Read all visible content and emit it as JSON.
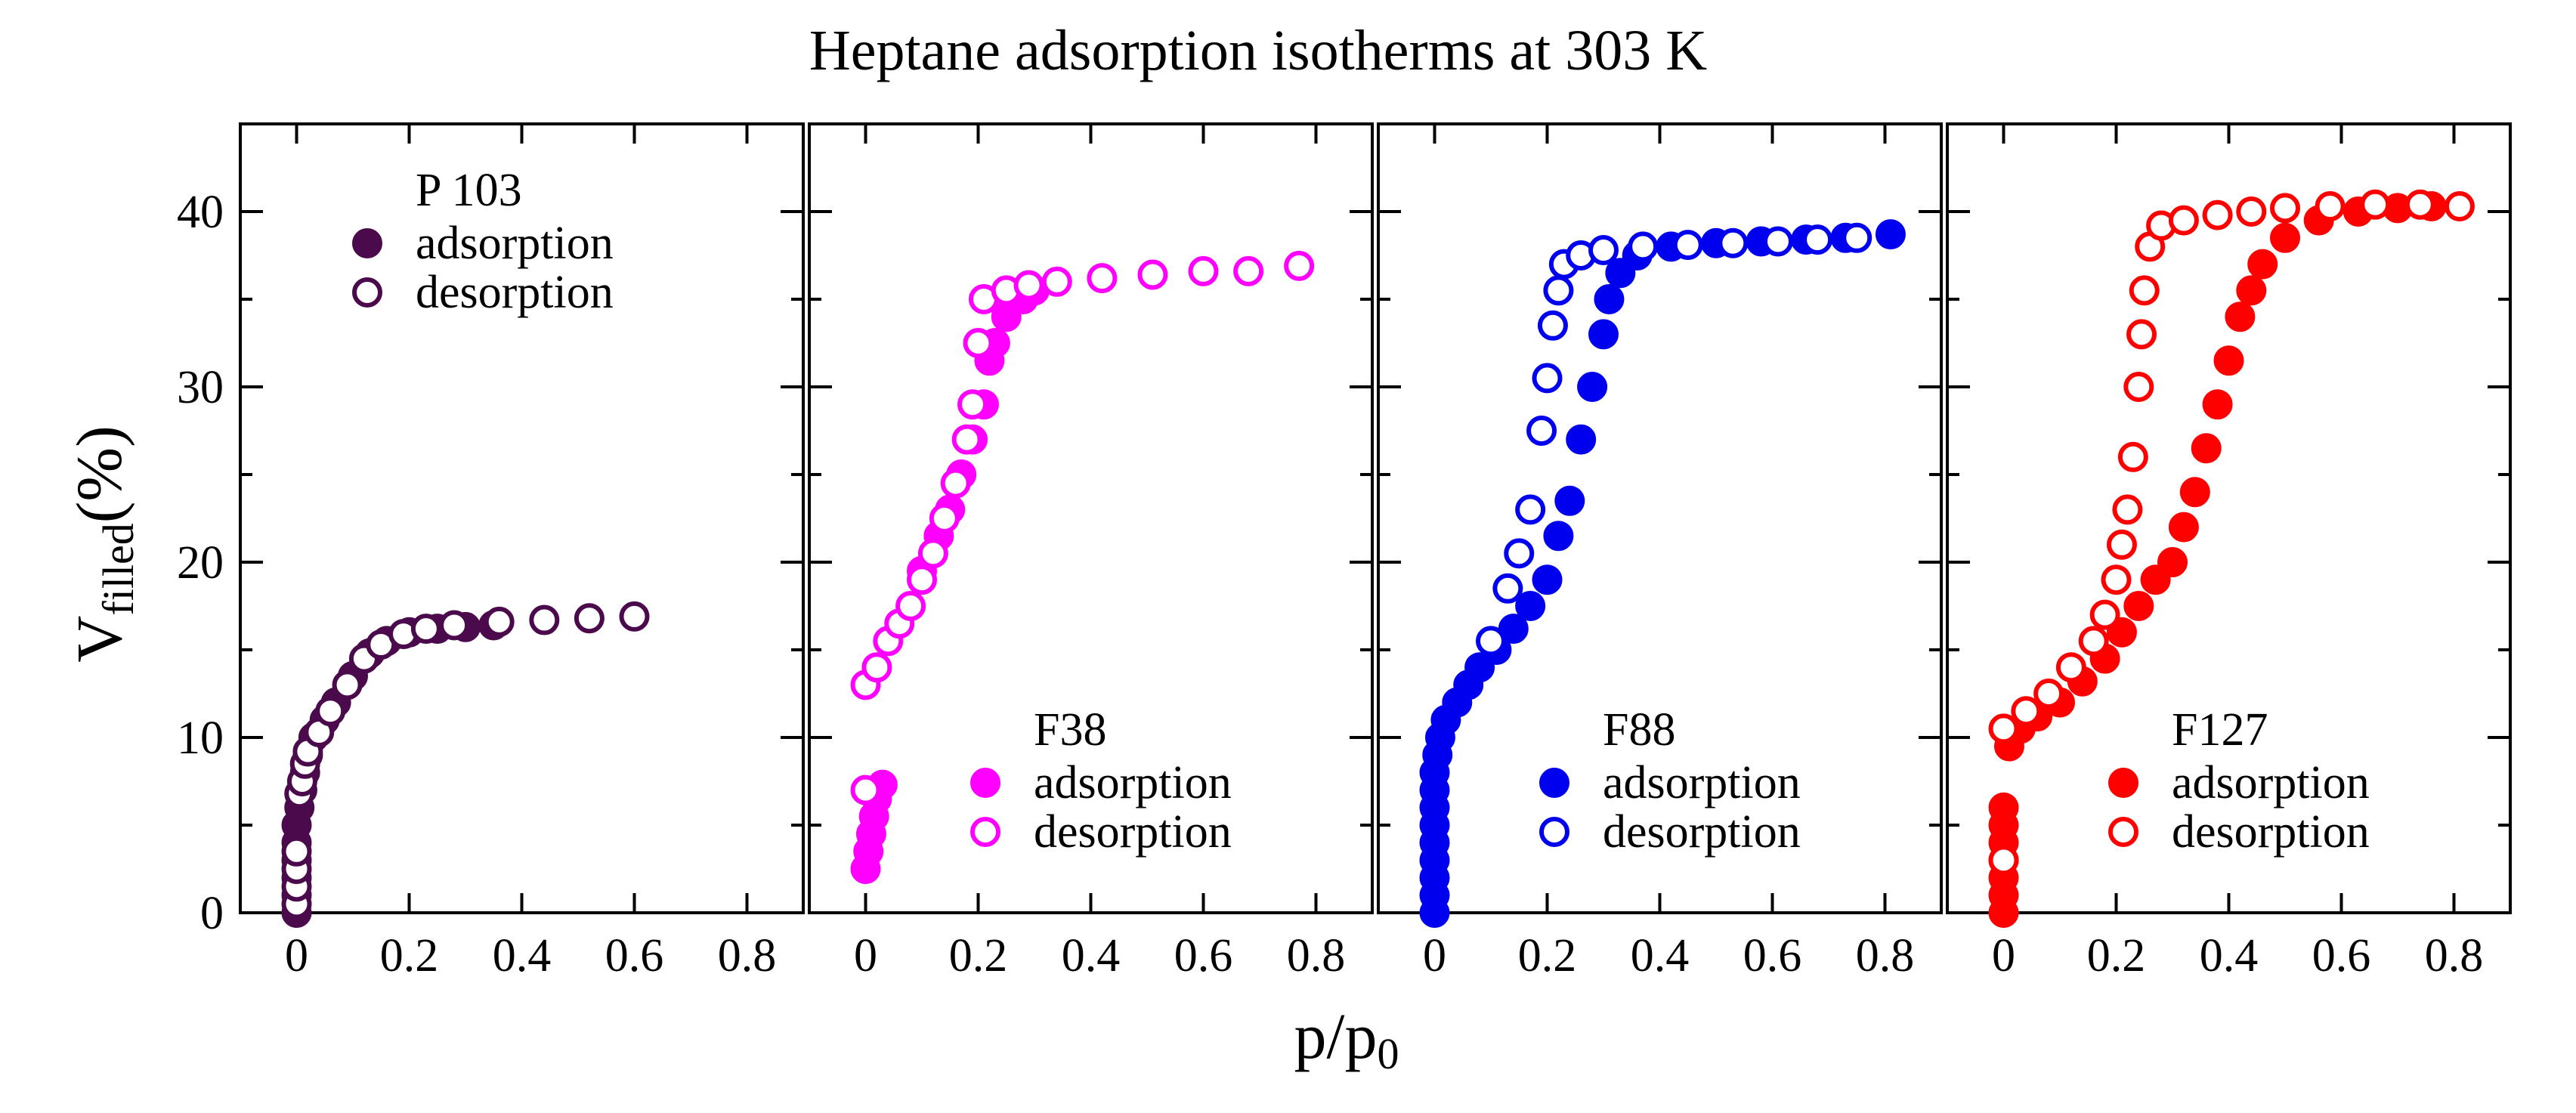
{
  "chart_data": {
    "type": "scatter",
    "title": "Heptane adsorption isotherms at 303 K",
    "xlabel_main": "p/p",
    "xlabel_sub": "0",
    "ylabel_main": "V",
    "ylabel_sub": "filled",
    "ylabel_suffix": "(%)",
    "xlim": [
      -0.1,
      0.9
    ],
    "ylim": [
      0,
      45
    ],
    "xticks": [
      0,
      0.2,
      0.4,
      0.6,
      0.8
    ],
    "xtick_labels": [
      "0",
      "0.2",
      "0.4",
      "0.6",
      "0.8"
    ],
    "yticks": [
      0,
      10,
      20,
      30,
      40
    ],
    "ytick_labels": [
      "0",
      "10",
      "20",
      "30",
      "40"
    ],
    "panels": [
      {
        "name": "P103",
        "label": "P 103",
        "color": "#4B0A4B",
        "legend_position": "top-left",
        "legend_adsorption": "adsorption",
        "legend_desorption": "desorption",
        "adsorption": [
          [
            0.0,
            0
          ],
          [
            0.0,
            1
          ],
          [
            0.0,
            2
          ],
          [
            0.0,
            3
          ],
          [
            0.0,
            4
          ],
          [
            0.0,
            5
          ],
          [
            0.005,
            6
          ],
          [
            0.01,
            7
          ],
          [
            0.015,
            8
          ],
          [
            0.02,
            9
          ],
          [
            0.03,
            10
          ],
          [
            0.05,
            11
          ],
          [
            0.07,
            12
          ],
          [
            0.1,
            13.5
          ],
          [
            0.13,
            14.8
          ],
          [
            0.16,
            15.5
          ],
          [
            0.2,
            16.0
          ],
          [
            0.25,
            16.2
          ],
          [
            0.3,
            16.3
          ],
          [
            0.35,
            16.4
          ]
        ],
        "desorption": [
          [
            0.0,
            0.5
          ],
          [
            0.0,
            1.5
          ],
          [
            0.0,
            2.5
          ],
          [
            0.0,
            3.5
          ],
          [
            0.005,
            6.8
          ],
          [
            0.01,
            7.5
          ],
          [
            0.015,
            8.5
          ],
          [
            0.02,
            9.2
          ],
          [
            0.04,
            10.3
          ],
          [
            0.06,
            11.5
          ],
          [
            0.09,
            13.0
          ],
          [
            0.12,
            14.5
          ],
          [
            0.15,
            15.3
          ],
          [
            0.19,
            15.9
          ],
          [
            0.23,
            16.2
          ],
          [
            0.28,
            16.4
          ],
          [
            0.36,
            16.6
          ],
          [
            0.44,
            16.7
          ],
          [
            0.52,
            16.8
          ],
          [
            0.6,
            16.9
          ]
        ]
      },
      {
        "name": "F38",
        "label": "F38",
        "color": "#FF00FF",
        "legend_position": "bottom-right",
        "legend_adsorption": "adsorption",
        "legend_desorption": "desorption",
        "adsorption": [
          [
            0.0,
            2.5
          ],
          [
            0.005,
            3.5
          ],
          [
            0.01,
            4.5
          ],
          [
            0.015,
            5.5
          ],
          [
            0.02,
            6.5
          ],
          [
            0.03,
            7.3
          ],
          [
            0.1,
            19.5
          ],
          [
            0.13,
            21.5
          ],
          [
            0.15,
            23.0
          ],
          [
            0.17,
            25.0
          ],
          [
            0.19,
            27.0
          ],
          [
            0.21,
            29.0
          ],
          [
            0.22,
            31.5
          ],
          [
            0.23,
            32.5
          ],
          [
            0.25,
            34.0
          ],
          [
            0.28,
            35.0
          ],
          [
            0.3,
            35.5
          ]
        ],
        "desorption": [
          [
            0.0,
            7.0
          ],
          [
            0.0,
            13.0
          ],
          [
            0.02,
            14.0
          ],
          [
            0.04,
            15.5
          ],
          [
            0.06,
            16.5
          ],
          [
            0.08,
            17.5
          ],
          [
            0.1,
            19.0
          ],
          [
            0.12,
            20.5
          ],
          [
            0.14,
            22.5
          ],
          [
            0.16,
            24.5
          ],
          [
            0.18,
            27.0
          ],
          [
            0.19,
            29.0
          ],
          [
            0.2,
            32.5
          ],
          [
            0.21,
            35.0
          ],
          [
            0.25,
            35.5
          ],
          [
            0.29,
            35.8
          ],
          [
            0.34,
            36.0
          ],
          [
            0.42,
            36.2
          ],
          [
            0.51,
            36.4
          ],
          [
            0.6,
            36.6
          ],
          [
            0.68,
            36.6
          ],
          [
            0.77,
            36.9
          ]
        ]
      },
      {
        "name": "F88",
        "label": "F88",
        "color": "#0000EE",
        "legend_position": "bottom-right",
        "legend_adsorption": "adsorption",
        "legend_desorption": "desorption",
        "adsorption": [
          [
            0.0,
            0
          ],
          [
            0.0,
            1
          ],
          [
            0.0,
            2
          ],
          [
            0.0,
            3
          ],
          [
            0.0,
            4
          ],
          [
            0.0,
            5
          ],
          [
            0.0,
            6
          ],
          [
            0.0,
            7
          ],
          [
            0.0,
            8
          ],
          [
            0.005,
            9
          ],
          [
            0.01,
            10
          ],
          [
            0.02,
            11
          ],
          [
            0.04,
            12
          ],
          [
            0.06,
            13
          ],
          [
            0.08,
            14
          ],
          [
            0.11,
            15
          ],
          [
            0.14,
            16.2
          ],
          [
            0.17,
            17.5
          ],
          [
            0.2,
            19.0
          ],
          [
            0.22,
            21.5
          ],
          [
            0.24,
            23.5
          ],
          [
            0.26,
            27.0
          ],
          [
            0.28,
            30.0
          ],
          [
            0.3,
            33.0
          ],
          [
            0.31,
            35.0
          ],
          [
            0.33,
            36.5
          ],
          [
            0.36,
            37.5
          ],
          [
            0.42,
            38.0
          ],
          [
            0.5,
            38.2
          ],
          [
            0.58,
            38.3
          ],
          [
            0.66,
            38.4
          ],
          [
            0.73,
            38.5
          ],
          [
            0.81,
            38.7
          ]
        ],
        "desorption": [
          [
            0.1,
            15.5
          ],
          [
            0.13,
            18.5
          ],
          [
            0.15,
            20.5
          ],
          [
            0.17,
            23.0
          ],
          [
            0.19,
            27.5
          ],
          [
            0.2,
            30.5
          ],
          [
            0.21,
            33.5
          ],
          [
            0.22,
            35.5
          ],
          [
            0.23,
            37.0
          ],
          [
            0.26,
            37.5
          ],
          [
            0.3,
            37.8
          ],
          [
            0.37,
            38.0
          ],
          [
            0.45,
            38.1
          ],
          [
            0.53,
            38.2
          ],
          [
            0.61,
            38.3
          ],
          [
            0.68,
            38.4
          ],
          [
            0.75,
            38.5
          ]
        ]
      },
      {
        "name": "F127",
        "label": "F127",
        "color": "#FF0000",
        "legend_position": "bottom-right",
        "legend_adsorption": "adsorption",
        "legend_desorption": "desorption",
        "adsorption": [
          [
            0.0,
            0
          ],
          [
            0.0,
            1
          ],
          [
            0.0,
            2
          ],
          [
            0.0,
            3
          ],
          [
            0.0,
            4
          ],
          [
            0.0,
            5
          ],
          [
            0.0,
            6
          ],
          [
            0.01,
            9.5
          ],
          [
            0.03,
            10.5
          ],
          [
            0.06,
            11.2
          ],
          [
            0.1,
            12.0
          ],
          [
            0.14,
            13.2
          ],
          [
            0.18,
            14.5
          ],
          [
            0.21,
            16.0
          ],
          [
            0.24,
            17.5
          ],
          [
            0.27,
            19.0
          ],
          [
            0.3,
            20.0
          ],
          [
            0.32,
            22.0
          ],
          [
            0.34,
            24.0
          ],
          [
            0.36,
            26.5
          ],
          [
            0.38,
            29.0
          ],
          [
            0.4,
            31.5
          ],
          [
            0.42,
            34.0
          ],
          [
            0.44,
            35.5
          ],
          [
            0.46,
            37.0
          ],
          [
            0.5,
            38.5
          ],
          [
            0.56,
            39.5
          ],
          [
            0.63,
            40.0
          ],
          [
            0.7,
            40.2
          ],
          [
            0.76,
            40.3
          ]
        ],
        "desorption": [
          [
            0.0,
            3.0
          ],
          [
            0.0,
            10.5
          ],
          [
            0.04,
            11.5
          ],
          [
            0.08,
            12.5
          ],
          [
            0.12,
            14.0
          ],
          [
            0.16,
            15.5
          ],
          [
            0.18,
            17.0
          ],
          [
            0.2,
            19.0
          ],
          [
            0.21,
            21.0
          ],
          [
            0.22,
            23.0
          ],
          [
            0.23,
            26.0
          ],
          [
            0.24,
            30.0
          ],
          [
            0.245,
            33.0
          ],
          [
            0.25,
            35.5
          ],
          [
            0.26,
            38.0
          ],
          [
            0.28,
            39.2
          ],
          [
            0.32,
            39.5
          ],
          [
            0.38,
            39.8
          ],
          [
            0.44,
            40.0
          ],
          [
            0.5,
            40.2
          ],
          [
            0.58,
            40.3
          ],
          [
            0.66,
            40.4
          ],
          [
            0.74,
            40.4
          ],
          [
            0.81,
            40.3
          ]
        ]
      }
    ]
  }
}
